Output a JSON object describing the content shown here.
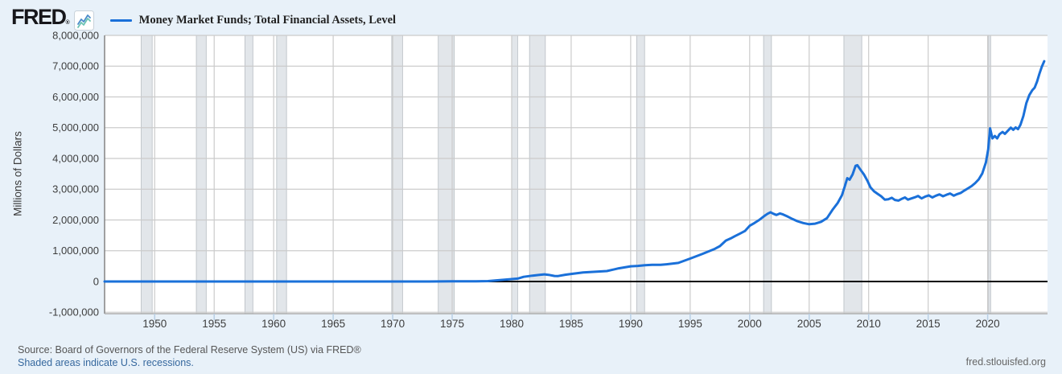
{
  "header": {
    "logo_text": "FRED",
    "logo_registered": "®"
  },
  "footer": {
    "source": "Source: Board of Governors of the Federal Reserve System (US) via FRED®",
    "note": "Shaded areas indicate U.S. recessions.",
    "site": "fred.stlouisfed.org"
  },
  "colors": {
    "page_bg": "#e8f1f9",
    "plot_bg": "#ffffff",
    "grid": "#cbcbcb",
    "recession_fill": "#e2e6ea",
    "recession_edge": "#b6bcc2",
    "axis_line_left": "#8a8a8a",
    "axis_line_bottom": "#adadad",
    "tick_mark": "#b9cfe4",
    "axis_text": "#3d3d3d",
    "zero_line": "#000000",
    "line": "#1a70d9"
  },
  "chart_data": {
    "type": "line",
    "title": "Money Market Funds; Total Financial Assets, Level",
    "ylabel": "Millions of Dollars",
    "xlabel": "",
    "x_range": [
      1945.79,
      2025.03
    ],
    "y_range": [
      -1047000,
      8000000
    ],
    "grid": true,
    "legend_position": "top-left",
    "x_ticks": [
      1950,
      1955,
      1960,
      1965,
      1970,
      1975,
      1980,
      1985,
      1990,
      1995,
      2000,
      2005,
      2010,
      2015,
      2020
    ],
    "y_ticks": [
      {
        "label": "8,000,000",
        "value": 8000000
      },
      {
        "label": "7,000,000",
        "value": 7000000
      },
      {
        "label": "6,000,000",
        "value": 6000000
      },
      {
        "label": "5,000,000",
        "value": 5000000
      },
      {
        "label": "4,000,000",
        "value": 4000000
      },
      {
        "label": "3,000,000",
        "value": 3000000
      },
      {
        "label": "2,000,000",
        "value": 2000000
      },
      {
        "label": "1,000,000",
        "value": 1000000
      },
      {
        "label": "0",
        "value": 0
      },
      {
        "label": "-1,000,000",
        "value": -1000000
      }
    ],
    "recessions": [
      [
        1948.87,
        1949.79
      ],
      [
        1953.5,
        1954.33
      ],
      [
        1957.58,
        1958.25
      ],
      [
        1960.25,
        1961.08
      ],
      [
        1969.92,
        1970.83
      ],
      [
        1973.83,
        1975.17
      ],
      [
        1980.0,
        1980.5
      ],
      [
        1981.5,
        1982.83
      ],
      [
        1990.5,
        1991.17
      ],
      [
        2001.17,
        2001.83
      ],
      [
        2007.92,
        2009.42
      ],
      [
        2020.08,
        2020.25
      ]
    ],
    "series": [
      {
        "name": "Money Market Funds; Total Financial Assets, Level",
        "color": "#1a70d9",
        "units": "Millions of Dollars",
        "points": [
          [
            1945.79,
            0
          ],
          [
            1948,
            0
          ],
          [
            1950,
            0
          ],
          [
            1952,
            0
          ],
          [
            1954,
            0
          ],
          [
            1956,
            0
          ],
          [
            1958,
            0
          ],
          [
            1960,
            0
          ],
          [
            1962,
            0
          ],
          [
            1964,
            0
          ],
          [
            1966,
            0
          ],
          [
            1968,
            0
          ],
          [
            1970,
            0
          ],
          [
            1971,
            0
          ],
          [
            1972,
            0
          ],
          [
            1973,
            100
          ],
          [
            1974,
            2400
          ],
          [
            1975,
            3700
          ],
          [
            1976,
            3700
          ],
          [
            1977,
            3900
          ],
          [
            1978,
            10800
          ],
          [
            1979,
            45200
          ],
          [
            1980,
            76400
          ],
          [
            1980.5,
            92000
          ],
          [
            1981,
            150000
          ],
          [
            1981.75,
            190000
          ],
          [
            1982.25,
            210000
          ],
          [
            1982.75,
            232000
          ],
          [
            1983.1,
            215000
          ],
          [
            1983.6,
            180000
          ],
          [
            1983.9,
            177000
          ],
          [
            1984.5,
            218000
          ],
          [
            1985,
            243800
          ],
          [
            1986,
            292200
          ],
          [
            1987,
            316100
          ],
          [
            1988,
            338000
          ],
          [
            1989,
            428100
          ],
          [
            1990,
            493300
          ],
          [
            1990.6,
            505000
          ],
          [
            1991.2,
            530000
          ],
          [
            1991.8,
            542000
          ],
          [
            1992.5,
            540000
          ],
          [
            1993,
            559700
          ],
          [
            1994,
            602900
          ],
          [
            1995,
            745300
          ],
          [
            1996,
            891100
          ],
          [
            1997,
            1048700
          ],
          [
            1997.5,
            1150000
          ],
          [
            1998,
            1329600
          ],
          [
            1998.5,
            1420000
          ],
          [
            1998.75,
            1470000
          ],
          [
            1999.2,
            1560000
          ],
          [
            1999.6,
            1640000
          ],
          [
            2000,
            1812000
          ],
          [
            2000.4,
            1900000
          ],
          [
            2000.8,
            2000000
          ],
          [
            2001.2,
            2120000
          ],
          [
            2001.5,
            2200000
          ],
          [
            2001.75,
            2250000
          ],
          [
            2002.0,
            2200000
          ],
          [
            2002.25,
            2160000
          ],
          [
            2002.55,
            2210000
          ],
          [
            2002.8,
            2180000
          ],
          [
            2003.2,
            2110000
          ],
          [
            2003.6,
            2030000
          ],
          [
            2004.0,
            1960000
          ],
          [
            2004.5,
            1900000
          ],
          [
            2005.0,
            1860000
          ],
          [
            2005.5,
            1880000
          ],
          [
            2006.0,
            1940000
          ],
          [
            2006.5,
            2060000
          ],
          [
            2007.0,
            2350000
          ],
          [
            2007.4,
            2550000
          ],
          [
            2007.75,
            2800000
          ],
          [
            2008.0,
            3100000
          ],
          [
            2008.2,
            3360000
          ],
          [
            2008.4,
            3310000
          ],
          [
            2008.65,
            3480000
          ],
          [
            2008.9,
            3760000
          ],
          [
            2009.05,
            3780000
          ],
          [
            2009.3,
            3640000
          ],
          [
            2009.6,
            3480000
          ],
          [
            2009.9,
            3270000
          ],
          [
            2010.15,
            3060000
          ],
          [
            2010.45,
            2930000
          ],
          [
            2010.75,
            2850000
          ],
          [
            2011.05,
            2770000
          ],
          [
            2011.35,
            2660000
          ],
          [
            2011.65,
            2670000
          ],
          [
            2011.95,
            2720000
          ],
          [
            2012.2,
            2650000
          ],
          [
            2012.5,
            2630000
          ],
          [
            2012.8,
            2690000
          ],
          [
            2013.05,
            2730000
          ],
          [
            2013.3,
            2660000
          ],
          [
            2013.6,
            2700000
          ],
          [
            2013.9,
            2740000
          ],
          [
            2014.15,
            2780000
          ],
          [
            2014.45,
            2700000
          ],
          [
            2014.75,
            2760000
          ],
          [
            2015.05,
            2800000
          ],
          [
            2015.35,
            2730000
          ],
          [
            2015.65,
            2790000
          ],
          [
            2015.95,
            2830000
          ],
          [
            2016.25,
            2770000
          ],
          [
            2016.55,
            2820000
          ],
          [
            2016.85,
            2860000
          ],
          [
            2017.15,
            2790000
          ],
          [
            2017.45,
            2840000
          ],
          [
            2017.75,
            2880000
          ],
          [
            2018.05,
            2960000
          ],
          [
            2018.35,
            3030000
          ],
          [
            2018.65,
            3100000
          ],
          [
            2018.95,
            3200000
          ],
          [
            2019.25,
            3320000
          ],
          [
            2019.55,
            3510000
          ],
          [
            2019.85,
            3870000
          ],
          [
            2020.05,
            4300000
          ],
          [
            2020.2,
            4980000
          ],
          [
            2020.4,
            4650000
          ],
          [
            2020.6,
            4730000
          ],
          [
            2020.8,
            4650000
          ],
          [
            2021.0,
            4790000
          ],
          [
            2021.25,
            4860000
          ],
          [
            2021.45,
            4800000
          ],
          [
            2021.7,
            4900000
          ],
          [
            2021.95,
            5000000
          ],
          [
            2022.15,
            4930000
          ],
          [
            2022.35,
            5010000
          ],
          [
            2022.55,
            4950000
          ],
          [
            2022.75,
            5090000
          ],
          [
            2023.0,
            5380000
          ],
          [
            2023.25,
            5800000
          ],
          [
            2023.5,
            6060000
          ],
          [
            2023.75,
            6220000
          ],
          [
            2023.95,
            6300000
          ],
          [
            2024.15,
            6500000
          ],
          [
            2024.35,
            6750000
          ],
          [
            2024.55,
            6980000
          ],
          [
            2024.75,
            7160000
          ]
        ]
      }
    ]
  }
}
